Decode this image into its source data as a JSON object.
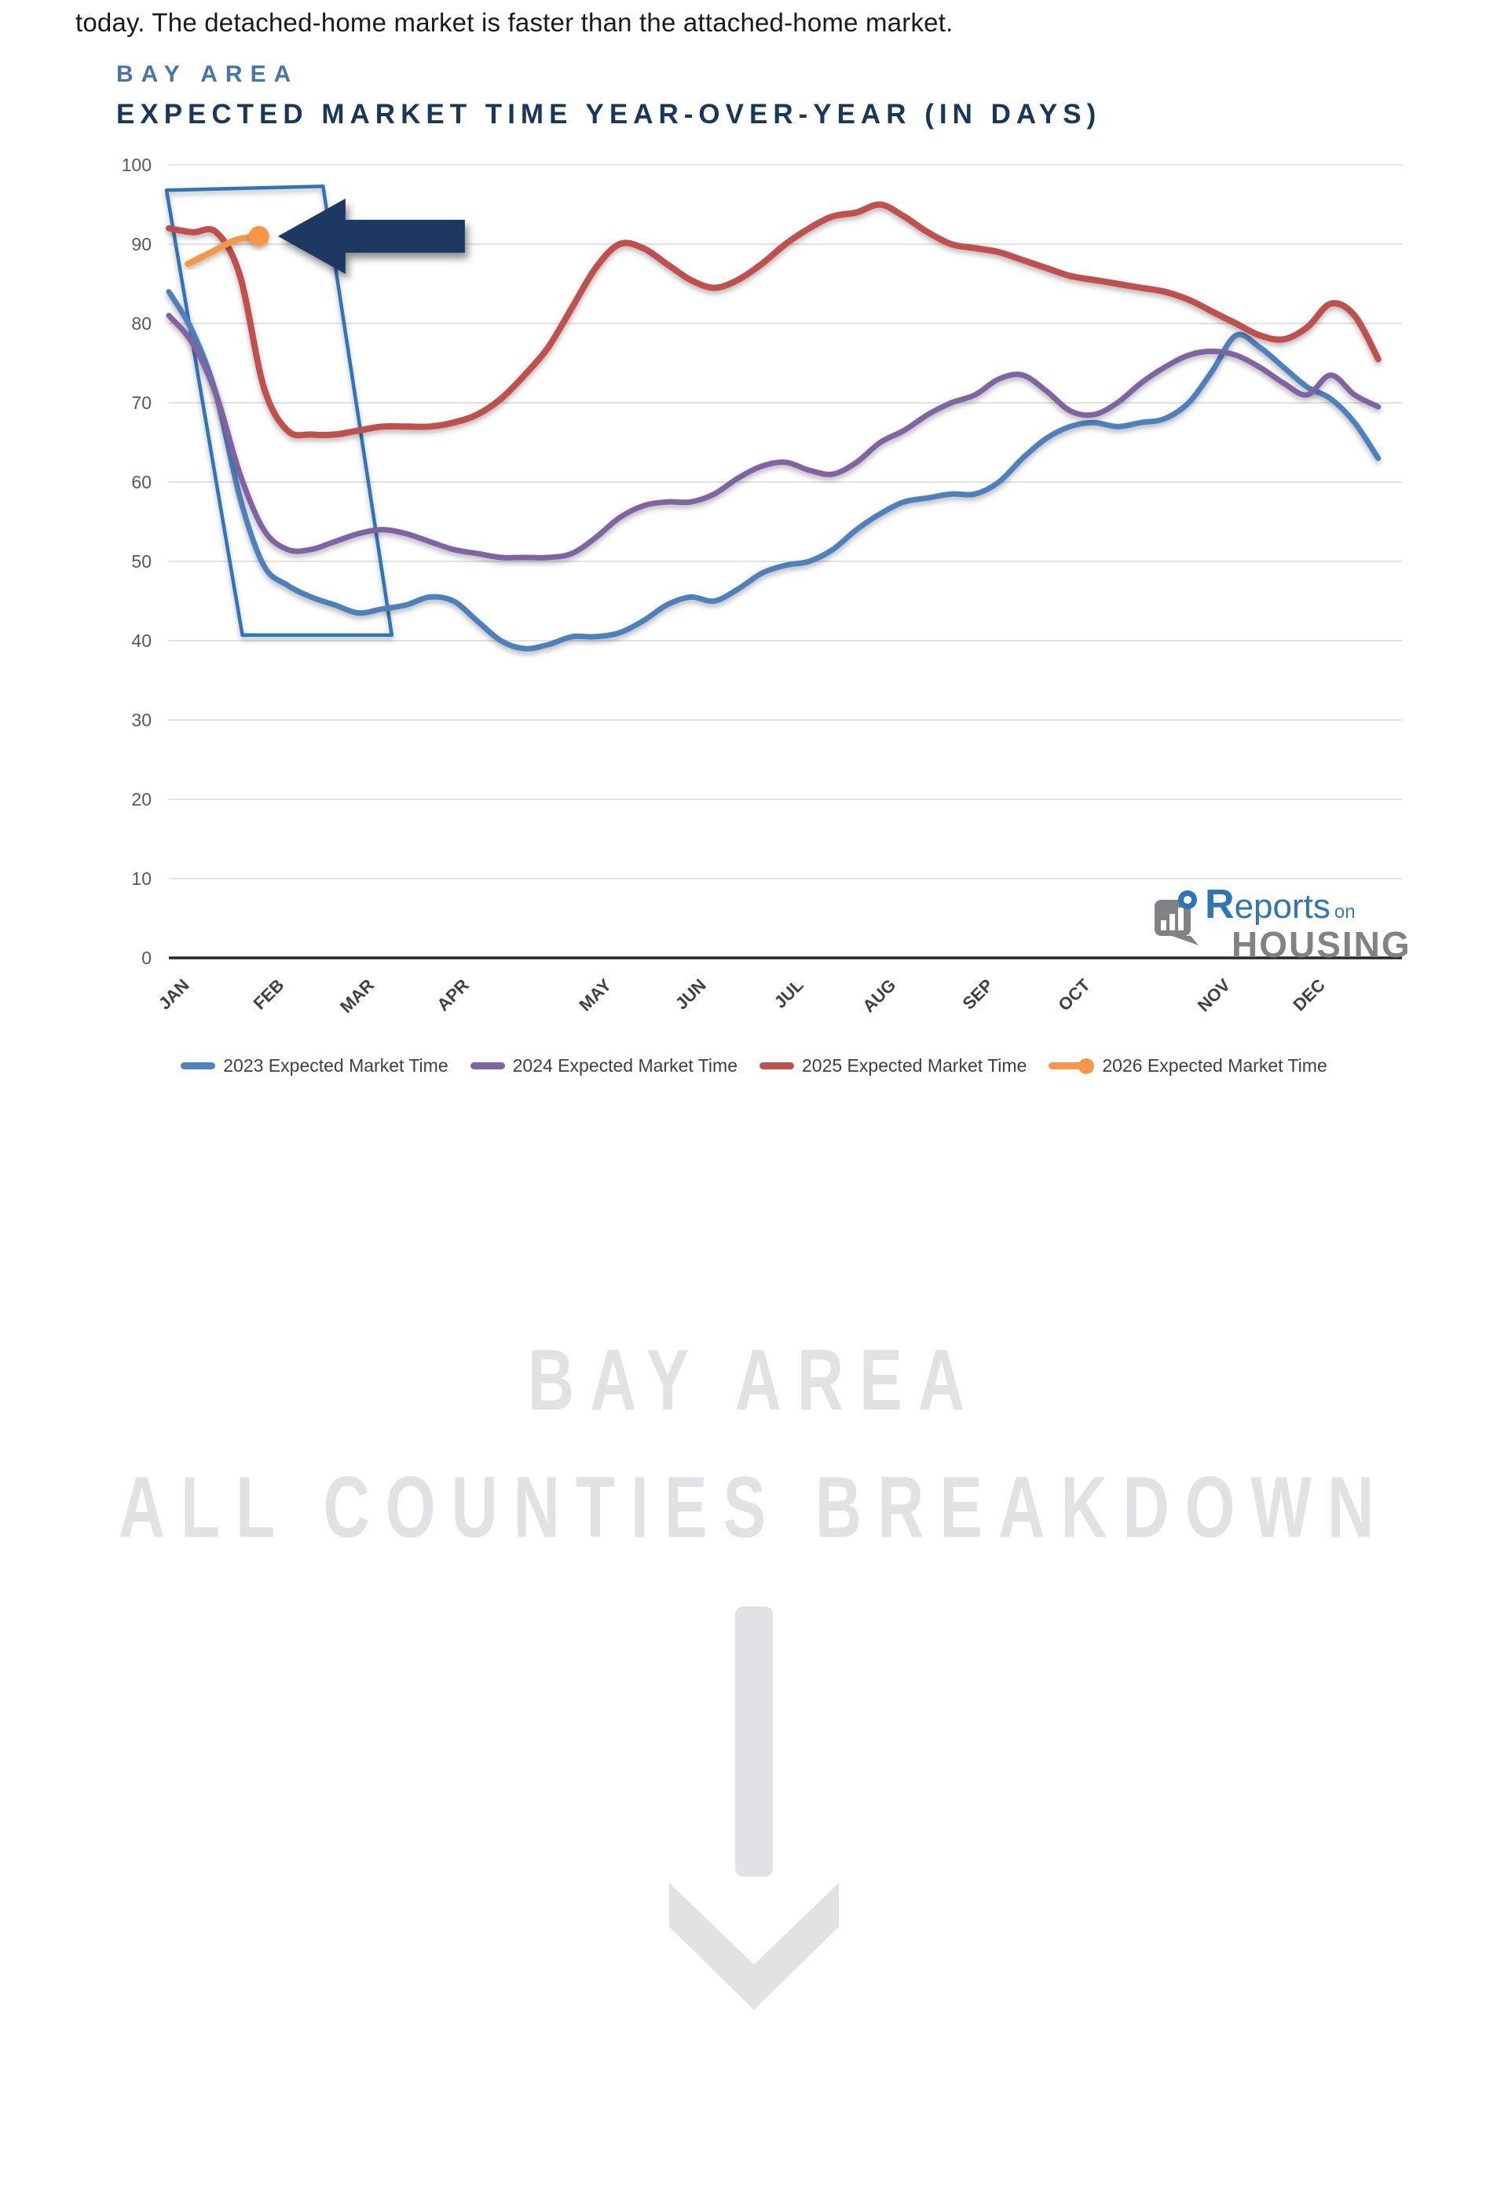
{
  "page": {
    "intro_text": "today. The detached-home market is faster than the attached-home market."
  },
  "logo": {
    "r": "R",
    "eports": "eports",
    "on": "on",
    "housing": "HOUSING"
  },
  "watermark": {
    "line1": "BAY AREA",
    "line2": "ALL COUNTIES BREAKDOWN"
  },
  "chart_data": {
    "type": "line",
    "region": "BAY AREA",
    "title": "EXPECTED MARKET TIME YEAR-OVER-YEAR (IN DAYS)",
    "x_axis": {
      "unit": "weeks",
      "range": [
        0,
        52
      ],
      "month_labels": [
        "JAN",
        "FEB",
        "MAR",
        "APR",
        "MAY",
        "JUN",
        "JUL",
        "AUG",
        "SEP",
        "OCT",
        "NOV",
        "DEC"
      ],
      "month_positions_weeks": [
        0.7,
        4.7,
        8.5,
        12.5,
        18.5,
        22.5,
        26.6,
        30.5,
        34.6,
        38.7,
        44.6,
        48.6
      ]
    },
    "y_axis": {
      "range": [
        0,
        100
      ],
      "ticks": [
        0,
        10,
        20,
        30,
        40,
        50,
        60,
        70,
        80,
        90,
        100
      ],
      "grid": true
    },
    "legend_position": "bottom",
    "series": [
      {
        "name": "2023 Expected Market Time",
        "color": "#4E81BD",
        "width": 7,
        "start_week": 0,
        "values": [
          84,
          79,
          71,
          58,
          49.5,
          47,
          45.5,
          44.5,
          43.5,
          44,
          44.5,
          45.5,
          45,
          42.5,
          40,
          39,
          39.5,
          40.5,
          40.5,
          41,
          42.5,
          44.5,
          45.5,
          45,
          46.5,
          48.5,
          49.5,
          50,
          51.5,
          54,
          56,
          57.5,
          58,
          58.5,
          58.5,
          60,
          63,
          65.5,
          67,
          67.5,
          67,
          67.5,
          68,
          70,
          74,
          78.5,
          77,
          74.5,
          72,
          70.5,
          67.5,
          63
        ]
      },
      {
        "name": "2024 Expected Market Time",
        "color": "#8064A2",
        "width": 7,
        "start_week": 0,
        "values": [
          81,
          77.5,
          71,
          61,
          54,
          51.5,
          51.5,
          52.5,
          53.5,
          54,
          53.5,
          52.5,
          51.5,
          51,
          50.5,
          50.5,
          50.5,
          51,
          53,
          55.5,
          57,
          57.5,
          57.5,
          58.5,
          60.5,
          62,
          62.5,
          61.5,
          61,
          62.5,
          65,
          66.5,
          68.5,
          70,
          71,
          73,
          73.5,
          71.5,
          69,
          68.5,
          70,
          72.5,
          74.5,
          76,
          76.5,
          76,
          74.5,
          72.5,
          71,
          73.5,
          71,
          69.5
        ]
      },
      {
        "name": "2025 Expected Market Time",
        "color": "#C0504D",
        "width": 8,
        "start_week": 0,
        "values": [
          92,
          91.5,
          91.5,
          86,
          72,
          66.5,
          66,
          66,
          66.5,
          67,
          67,
          67,
          67.5,
          68.5,
          70.5,
          73.5,
          77,
          82,
          87,
          90,
          89.5,
          87.5,
          85.5,
          84.5,
          85.5,
          87.5,
          90,
          92,
          93.5,
          94,
          95,
          93.5,
          91.5,
          90,
          89.5,
          89,
          88,
          87,
          86,
          85.5,
          85,
          84.5,
          84,
          83,
          81.5,
          80,
          78.5,
          78,
          79.5,
          82.5,
          81,
          75.5
        ]
      },
      {
        "name": "2026 Expected Market Time",
        "color": "#F79646",
        "width": 8,
        "start_week": 0.8,
        "values": [
          87.5,
          89,
          90.5,
          91
        ],
        "end_dot": true
      }
    ],
    "annotations": {
      "highlight_box": {
        "color": "#2E75B6",
        "points": [
          [
            -0.1,
            96.8
          ],
          [
            6.5,
            97.3
          ],
          [
            9.4,
            40.7
          ],
          [
            3.1,
            40.7
          ]
        ]
      },
      "arrow": {
        "color": "#1F3864",
        "direction": "left",
        "tip_week": 4.6,
        "tip_value": 91
      }
    }
  }
}
